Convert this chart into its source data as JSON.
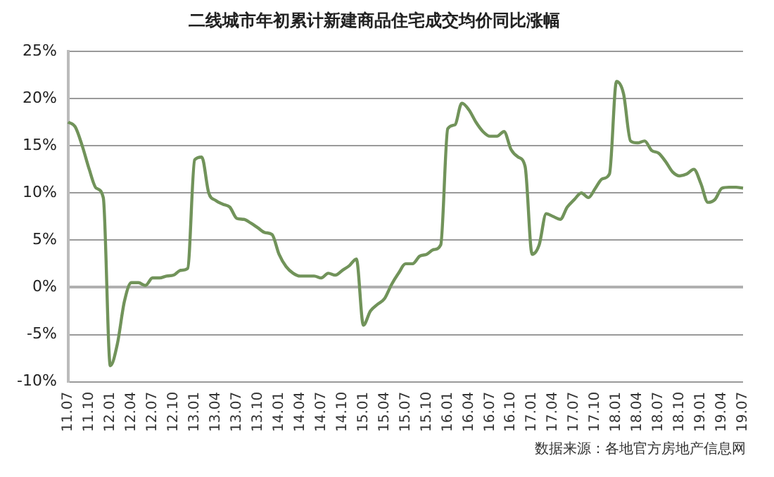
{
  "chart_data": {
    "type": "line",
    "title": "二线城市年初累计新建商品住宅成交均价同比涨幅",
    "categories": [
      "11.07",
      null,
      null,
      "11.10",
      null,
      null,
      "12.01",
      null,
      null,
      "12.04",
      null,
      null,
      "12.07",
      null,
      null,
      "12.10",
      null,
      null,
      "13.01",
      null,
      null,
      "13.04",
      null,
      null,
      "13.07",
      null,
      null,
      "13.10",
      null,
      null,
      "14.01",
      null,
      null,
      "14.04",
      null,
      null,
      "14.07",
      null,
      null,
      "14.10",
      null,
      null,
      "15.01",
      null,
      null,
      "15.04",
      null,
      null,
      "15.07",
      null,
      null,
      "15.10",
      null,
      null,
      "16.01",
      null,
      null,
      "16.04",
      null,
      null,
      "16.07",
      null,
      null,
      "16.10",
      null,
      null,
      "17.01",
      null,
      null,
      "17.04",
      null,
      null,
      "17.07",
      null,
      null,
      "17.10",
      null,
      null,
      "18.01",
      null,
      null,
      "18.04",
      null,
      null,
      "18.07",
      null,
      null,
      "18.10",
      null,
      null,
      "19.01",
      null,
      null,
      "19.04",
      null,
      null,
      "19.07"
    ],
    "series": [
      {
        "color": "#71935a",
        "values": [
          17.5,
          17,
          15,
          12.5,
          10.5,
          9.5,
          -8.3,
          -6,
          -1.5,
          0.5,
          0.5,
          0.2,
          1,
          1,
          1.2,
          1.3,
          1.8,
          2,
          13.5,
          13.8,
          10,
          9.2,
          8.8,
          8.5,
          7.3,
          7.2,
          6.8,
          6.3,
          5.8,
          5.6,
          3.5,
          2.2,
          1.5,
          1.2,
          1.2,
          1.2,
          1,
          1.5,
          1.3,
          1.8,
          2.3,
          3,
          -4,
          -2.5,
          -1.8,
          -1.2,
          0.3,
          1.5,
          2.5,
          2.5,
          3.3,
          3.5,
          4,
          4.5,
          16.8,
          17.2,
          19.5,
          18.8,
          17.5,
          16.5,
          16,
          16,
          16.5,
          14.6,
          13.8,
          12.8,
          3.5,
          4.5,
          7.8,
          7.5,
          7.2,
          8.5,
          9.3,
          10,
          9.5,
          10.5,
          11.5,
          12,
          21.8,
          20.5,
          15.5,
          15.3,
          15.5,
          14.5,
          14.2,
          13.3,
          12.2,
          11.8,
          12,
          12.5,
          11,
          9,
          9.3,
          10.5,
          10.6,
          10.6,
          10.5
        ]
      }
    ],
    "ylim": [
      -10,
      25
    ],
    "yticks": [
      {
        "value": -10,
        "label": "-10%"
      },
      {
        "value": -5,
        "label": "-5%"
      },
      {
        "value": 0,
        "label": "0%"
      },
      {
        "value": 5,
        "label": "5%"
      },
      {
        "value": 10,
        "label": "10%"
      },
      {
        "value": 15,
        "label": "15%"
      },
      {
        "value": 20,
        "label": "20%"
      },
      {
        "value": 25,
        "label": "25%"
      }
    ],
    "grid": "y",
    "legend": false,
    "marker": "none",
    "line_style": "solid",
    "annotations": [
      "数据来源：各地官方房地产信息网"
    ]
  }
}
